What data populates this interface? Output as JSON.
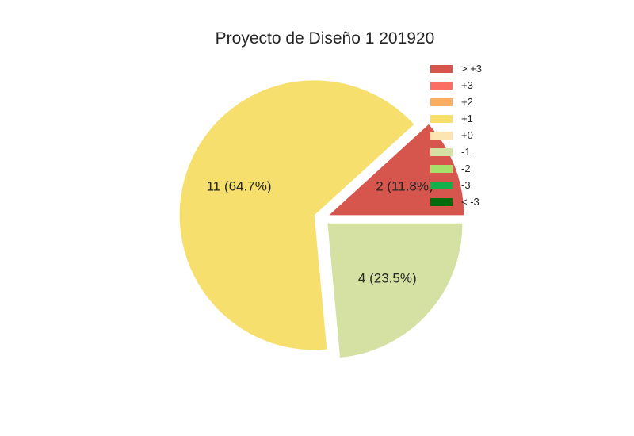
{
  "chart_data": {
    "type": "pie",
    "title": "Proyecto de Diseño 1 201920",
    "slices": [
      {
        "label": "> +3",
        "value": 2,
        "pct_label": "2 (11.8%)",
        "color": "#d6564d",
        "explode": true
      },
      {
        "label": "+3",
        "value": 0,
        "pct_label": "",
        "color": "#fb6e63",
        "explode": false
      },
      {
        "label": "+2",
        "value": 0,
        "pct_label": "",
        "color": "#fbad62",
        "explode": false
      },
      {
        "label": "+1",
        "value": 11,
        "pct_label": "11 (64.7%)",
        "color": "#f6df6c",
        "explode": true
      },
      {
        "label": "+0",
        "value": 0,
        "pct_label": "",
        "color": "#fce5b0",
        "explode": false
      },
      {
        "label": "-1",
        "value": 4,
        "pct_label": "4 (23.5%)",
        "color": "#d4e1a2",
        "explode": true
      },
      {
        "label": "-2",
        "value": 0,
        "pct_label": "",
        "color": "#a6e16b",
        "explode": false
      },
      {
        "label": "-3",
        "value": 0,
        "pct_label": "",
        "color": "#11b14c",
        "explode": false
      },
      {
        "label": "< -3",
        "value": 0,
        "pct_label": "",
        "color": "#036b0b",
        "explode": false
      }
    ],
    "legend_position": "top-right"
  }
}
